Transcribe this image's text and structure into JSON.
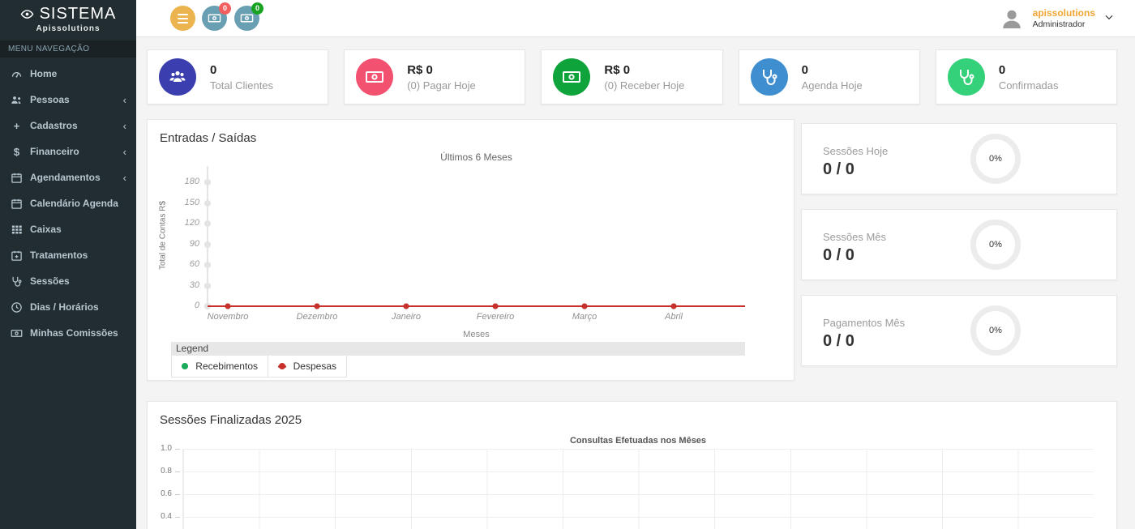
{
  "app": {
    "brand": "SISTEMA",
    "brand_sub": "Apissolutions"
  },
  "sidebar": {
    "menu_header": "MENU NAVEGAÇÃO",
    "items": [
      {
        "label": "Home",
        "icon": "tachometer-icon",
        "expandable": false
      },
      {
        "label": "Pessoas",
        "icon": "users-icon",
        "expandable": true
      },
      {
        "label": "Cadastros",
        "icon": "plus-icon",
        "expandable": true
      },
      {
        "label": "Financeiro",
        "icon": "dollar-icon",
        "expandable": true
      },
      {
        "label": "Agendamentos",
        "icon": "calendar-icon",
        "expandable": true
      },
      {
        "label": "Calendário Agenda",
        "icon": "calendar-icon",
        "expandable": false
      },
      {
        "label": "Caixas",
        "icon": "grid-icon",
        "expandable": false
      },
      {
        "label": "Tratamentos",
        "icon": "calendar-plus-icon",
        "expandable": false
      },
      {
        "label": "Sessões",
        "icon": "stethoscope-icon",
        "expandable": false
      },
      {
        "label": "Dias / Horários",
        "icon": "clock-icon",
        "expandable": false
      },
      {
        "label": "Minhas Comissões",
        "icon": "money-icon",
        "expandable": false
      }
    ],
    "chevron": "‹"
  },
  "topbar": {
    "buttons": [
      {
        "name": "menu-toggle",
        "icon": "hamburger-icon",
        "color": "#ecb44e",
        "badge": null
      },
      {
        "name": "contas-pagar",
        "icon": "money-icon",
        "color": "#699fb3",
        "badge": "0",
        "badge_color": "#f35e5e"
      },
      {
        "name": "contas-receber",
        "icon": "money-icon",
        "color": "#699fb3",
        "badge": "0",
        "badge_color": "#17a222"
      }
    ],
    "user": {
      "name": "apissolutions",
      "role": "Administrador",
      "name_color": "#f0a633"
    }
  },
  "cards": [
    {
      "value": "0",
      "label": "Total Clientes",
      "icon": "users-icon",
      "color": "#3b3eae"
    },
    {
      "value": "R$ 0",
      "label": "(0) Pagar Hoje",
      "icon": "money-icon",
      "color": "#f25270"
    },
    {
      "value": "R$ 0",
      "label": "(0) Receber Hoje",
      "icon": "money-icon",
      "color": "#0fa33c"
    },
    {
      "value": "0",
      "label": "Agenda Hoje",
      "icon": "stethoscope-icon",
      "color": "#3e8ed0"
    },
    {
      "value": "0",
      "label": "Confirmadas",
      "icon": "stethoscope-icon",
      "color": "#35d07a"
    }
  ],
  "progress_panels": [
    {
      "label": "Sessões Hoje",
      "value": "0 / 0",
      "percent": "0%"
    },
    {
      "label": "Sessões Mês",
      "value": "0 / 0",
      "percent": "0%"
    },
    {
      "label": "Pagamentos Mês",
      "value": "0 / 0",
      "percent": "0%"
    }
  ],
  "chart_data": [
    {
      "type": "line",
      "panel_title": "Entradas / Saídas",
      "title": "Últimos 6 Meses",
      "xlabel": "Meses",
      "ylabel": "Total de Contas R$",
      "categories": [
        "Novembro",
        "Dezembro",
        "Janeiro",
        "Fevereiro",
        "Março",
        "Abril"
      ],
      "yticks": [
        180,
        150,
        120,
        90,
        60,
        30,
        0
      ],
      "ylim": [
        0,
        180
      ],
      "grid": false,
      "legend_title": "Legend",
      "legend_position": "bottom-left",
      "series": [
        {
          "name": "Recebimentos",
          "color": "#1bab5c",
          "values": [
            0,
            0,
            0,
            0,
            0,
            0
          ]
        },
        {
          "name": "Despesas",
          "color": "#c9302c",
          "values": [
            0,
            0,
            0,
            0,
            0,
            0
          ]
        }
      ]
    },
    {
      "type": "line",
      "panel_title": "Sessões Finalizadas 2025",
      "title": "Consultas Efetuadas nos Mêses",
      "yticks_visible": [
        "1.0",
        "0.8",
        "0.6",
        "0.4"
      ],
      "ylim_visible": [
        0.4,
        1.0
      ],
      "grid": true,
      "series": []
    }
  ]
}
